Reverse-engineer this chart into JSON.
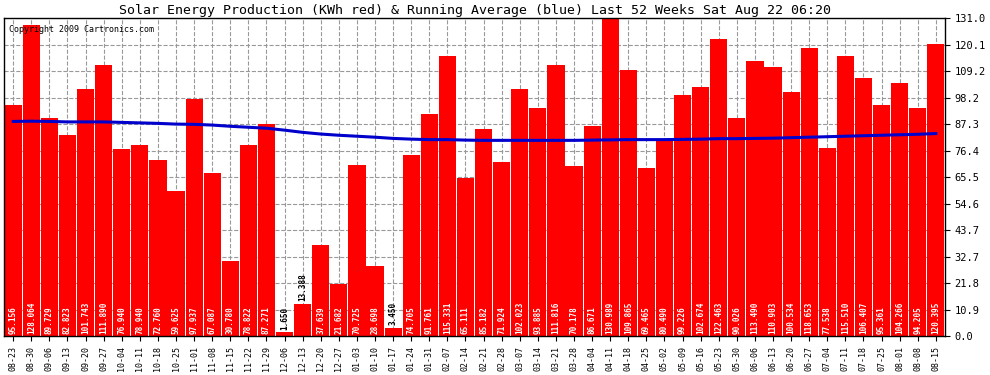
{
  "title": "Solar Energy Production (KWh red) & Running Average (blue) Last 52 Weeks Sat Aug 22 06:20",
  "copyright": "Copyright 2009 Cartronics.com",
  "bar_color": "#ff0000",
  "avg_line_color": "#0000cc",
  "background_color": "#ffffff",
  "plot_bg_color": "#ffffff",
  "grid_color": "#999999",
  "categories": [
    "08-23",
    "08-30",
    "09-06",
    "09-13",
    "09-20",
    "09-27",
    "10-04",
    "10-11",
    "10-18",
    "10-25",
    "11-01",
    "11-08",
    "11-15",
    "11-22",
    "11-29",
    "12-06",
    "12-13",
    "12-20",
    "12-27",
    "01-03",
    "01-10",
    "01-17",
    "01-24",
    "01-31",
    "02-07",
    "02-14",
    "02-21",
    "02-28",
    "03-07",
    "03-14",
    "03-21",
    "03-28",
    "04-04",
    "04-11",
    "04-18",
    "04-25",
    "05-02",
    "05-09",
    "05-16",
    "05-23",
    "05-30",
    "06-06",
    "06-13",
    "06-20",
    "06-27",
    "07-04",
    "07-11",
    "07-18",
    "07-25",
    "08-01",
    "08-08",
    "08-15"
  ],
  "values": [
    95.156,
    128.064,
    89.729,
    82.823,
    101.743,
    111.89,
    76.94,
    78.94,
    72.76,
    59.625,
    97.937,
    67.087,
    30.78,
    78.822,
    87.271,
    1.65,
    13.388,
    37.639,
    21.682,
    70.725,
    28.698,
    3.45,
    74.705,
    91.761,
    115.331,
    65.111,
    85.182,
    71.924,
    102.023,
    93.885,
    111.816,
    70.178,
    86.671,
    130.989,
    109.865,
    69.465,
    80.49,
    99.226,
    102.674,
    122.463,
    90.026,
    113.49,
    110.903,
    100.534,
    118.653,
    77.538,
    115.51,
    106.407,
    95.361,
    104.266,
    94.205,
    120.395
  ],
  "running_avg": [
    88.5,
    88.6,
    88.5,
    88.3,
    88.3,
    88.3,
    88.1,
    87.9,
    87.7,
    87.4,
    87.3,
    87.0,
    86.5,
    86.1,
    85.7,
    84.9,
    84.0,
    83.3,
    82.8,
    82.4,
    82.0,
    81.5,
    81.2,
    81.0,
    81.0,
    80.8,
    80.7,
    80.7,
    80.7,
    80.7,
    80.7,
    80.7,
    80.8,
    80.9,
    81.0,
    81.0,
    81.0,
    81.1,
    81.2,
    81.4,
    81.4,
    81.5,
    81.6,
    81.8,
    82.0,
    82.2,
    82.4,
    82.6,
    82.8,
    83.0,
    83.2,
    83.5
  ],
  "yticks": [
    0.0,
    10.9,
    21.8,
    32.7,
    43.7,
    54.6,
    65.5,
    76.4,
    87.3,
    98.2,
    109.2,
    120.1,
    131.0
  ],
  "ylim": [
    0.0,
    131.0
  ],
  "bar_width": 0.95,
  "label_fontsize": 5.5,
  "tick_fontsize": 7.5,
  "title_fontsize": 9.5
}
